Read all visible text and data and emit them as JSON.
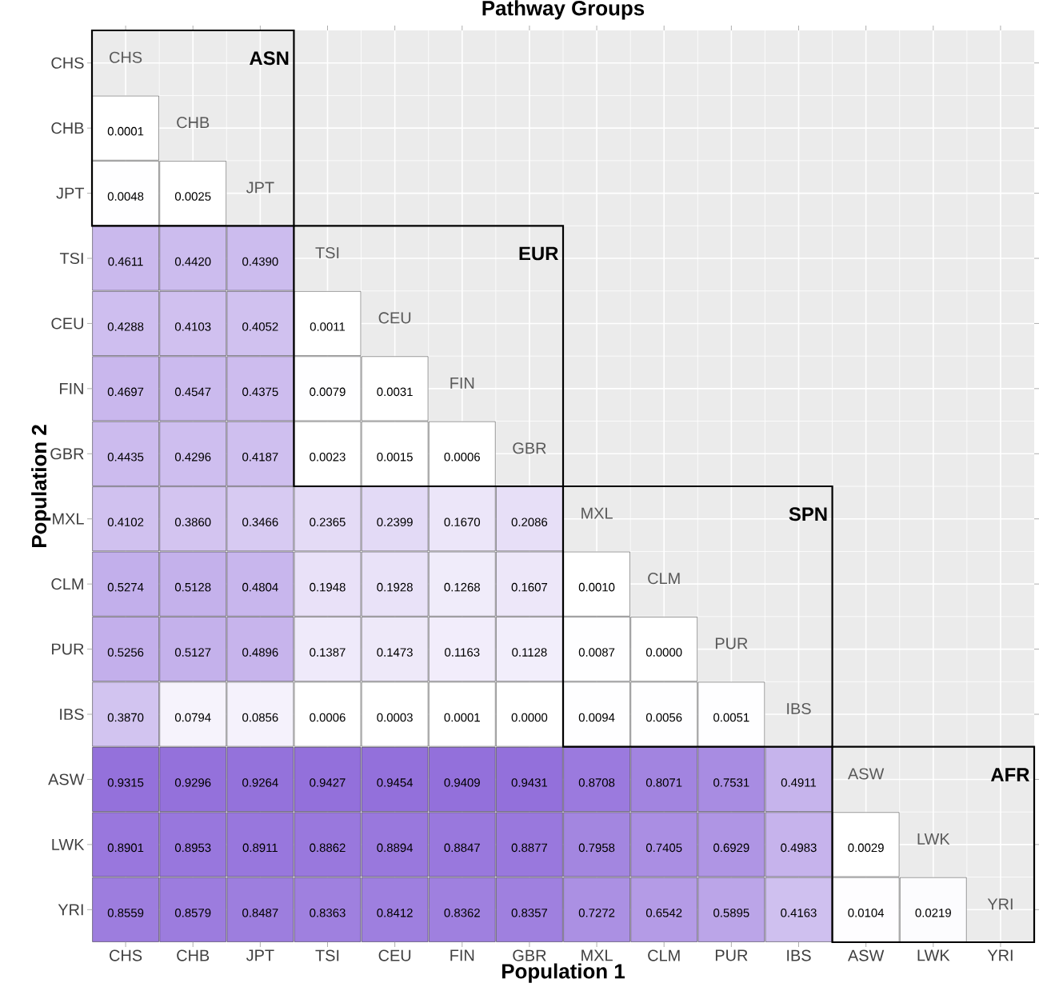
{
  "chart_data": {
    "type": "heatmap",
    "title": "Pathway Groups",
    "xlabel": "Population 1",
    "ylabel": "Population 2",
    "grid": true,
    "categories": [
      "CHS",
      "CHB",
      "JPT",
      "TSI",
      "CEU",
      "FIN",
      "GBR",
      "MXL",
      "CLM",
      "PUR",
      "IBS",
      "ASW",
      "LWK",
      "YRI"
    ],
    "y_categories": [
      "CHS",
      "CHB",
      "JPT",
      "TSI",
      "CEU",
      "FIN",
      "GBR",
      "MXL",
      "CLM",
      "PUR",
      "IBS",
      "ASW",
      "LWK",
      "YRI"
    ],
    "cells": [
      [
        null,
        null,
        null,
        null,
        null,
        null,
        null,
        null,
        null,
        null,
        null,
        null,
        null,
        null
      ],
      [
        0.0001,
        null,
        null,
        null,
        null,
        null,
        null,
        null,
        null,
        null,
        null,
        null,
        null,
        null
      ],
      [
        0.0048,
        0.0025,
        null,
        null,
        null,
        null,
        null,
        null,
        null,
        null,
        null,
        null,
        null,
        null
      ],
      [
        0.4611,
        0.442,
        0.439,
        null,
        null,
        null,
        null,
        null,
        null,
        null,
        null,
        null,
        null,
        null
      ],
      [
        0.4288,
        0.4103,
        0.4052,
        0.0011,
        null,
        null,
        null,
        null,
        null,
        null,
        null,
        null,
        null,
        null
      ],
      [
        0.4697,
        0.4547,
        0.4375,
        0.0079,
        0.0031,
        null,
        null,
        null,
        null,
        null,
        null,
        null,
        null,
        null
      ],
      [
        0.4435,
        0.4296,
        0.4187,
        0.0023,
        0.0015,
        0.0006,
        null,
        null,
        null,
        null,
        null,
        null,
        null,
        null
      ],
      [
        0.4102,
        0.386,
        0.3466,
        0.2365,
        0.2399,
        0.167,
        0.2086,
        null,
        null,
        null,
        null,
        null,
        null,
        null
      ],
      [
        0.5274,
        0.5128,
        0.4804,
        0.1948,
        0.1928,
        0.1268,
        0.1607,
        0.001,
        null,
        null,
        null,
        null,
        null,
        null
      ],
      [
        0.5256,
        0.5127,
        0.4896,
        0.1387,
        0.1473,
        0.1163,
        0.1128,
        0.0087,
        0.0,
        null,
        null,
        null,
        null,
        null
      ],
      [
        0.387,
        0.0794,
        0.0856,
        0.0006,
        0.0003,
        0.0001,
        0.0,
        0.0094,
        0.0056,
        0.0051,
        null,
        null,
        null,
        null
      ],
      [
        0.9315,
        0.9296,
        0.9264,
        0.9427,
        0.9454,
        0.9409,
        0.9431,
        0.8708,
        0.8071,
        0.7531,
        0.4911,
        null,
        null,
        null
      ],
      [
        0.8901,
        0.8953,
        0.8911,
        0.8862,
        0.8894,
        0.8847,
        0.8877,
        0.7958,
        0.7405,
        0.6929,
        0.4983,
        0.0029,
        null,
        null
      ],
      [
        0.8559,
        0.8579,
        0.8487,
        0.8363,
        0.8412,
        0.8362,
        0.8357,
        0.7272,
        0.6542,
        0.5895,
        0.4163,
        0.0104,
        0.0219,
        null
      ]
    ],
    "cell_labels": [
      [
        "CHS",
        null,
        null,
        null,
        null,
        null,
        null,
        null,
        null,
        null,
        null,
        null,
        null,
        null
      ],
      [
        "0.0001",
        "CHB",
        null,
        null,
        null,
        null,
        null,
        null,
        null,
        null,
        null,
        null,
        null,
        null
      ],
      [
        "0.0048",
        "0.0025",
        "JPT",
        null,
        null,
        null,
        null,
        null,
        null,
        null,
        null,
        null,
        null,
        null
      ],
      [
        "0.4611",
        "0.4420",
        "0.4390",
        "TSI",
        null,
        null,
        null,
        null,
        null,
        null,
        null,
        null,
        null,
        null
      ],
      [
        "0.4288",
        "0.4103",
        "0.4052",
        "0.0011",
        "CEU",
        null,
        null,
        null,
        null,
        null,
        null,
        null,
        null,
        null
      ],
      [
        "0.4697",
        "0.4547",
        "0.4375",
        "0.0079",
        "0.0031",
        "FIN",
        null,
        null,
        null,
        null,
        null,
        null,
        null,
        null
      ],
      [
        "0.4435",
        "0.4296",
        "0.4187",
        "0.0023",
        "0.0015",
        "0.0006",
        "GBR",
        null,
        null,
        null,
        null,
        null,
        null,
        null
      ],
      [
        "0.4102",
        "0.3860",
        "0.3466",
        "0.2365",
        "0.2399",
        "0.1670",
        "0.2086",
        "MXL",
        null,
        null,
        null,
        null,
        null,
        null
      ],
      [
        "0.5274",
        "0.5128",
        "0.4804",
        "0.1948",
        "0.1928",
        "0.1268",
        "0.1607",
        "0.0010",
        "CLM",
        null,
        null,
        null,
        null,
        null
      ],
      [
        "0.5256",
        "0.5127",
        "0.4896",
        "0.1387",
        "0.1473",
        "0.1163",
        "0.1128",
        "0.0087",
        "0.0000",
        "PUR",
        null,
        null,
        null,
        null
      ],
      [
        "0.3870",
        "0.0794",
        "0.0856",
        "0.0006",
        "0.0003",
        "0.0001",
        "0.0000",
        "0.0094",
        "0.0056",
        "0.0051",
        "IBS",
        null,
        null,
        null
      ],
      [
        "0.9315",
        "0.9296",
        "0.9264",
        "0.9427",
        "0.9454",
        "0.9409",
        "0.9431",
        "0.8708",
        "0.8071",
        "0.7531",
        "0.4911",
        "ASW",
        null,
        null
      ],
      [
        "0.8901",
        "0.8953",
        "0.8911",
        "0.8862",
        "0.8894",
        "0.8847",
        "0.8877",
        "0.7958",
        "0.7405",
        "0.6929",
        "0.4983",
        "0.0029",
        "LWK",
        null
      ],
      [
        "0.8559",
        "0.8579",
        "0.8487",
        "0.8363",
        "0.8412",
        "0.8362",
        "0.8357",
        "0.7272",
        "0.6542",
        "0.5895",
        "0.4163",
        "0.0104",
        "0.0219",
        "YRI"
      ]
    ],
    "annotations": [
      "ASN",
      "EUR",
      "SPN",
      "AFR"
    ]
  }
}
